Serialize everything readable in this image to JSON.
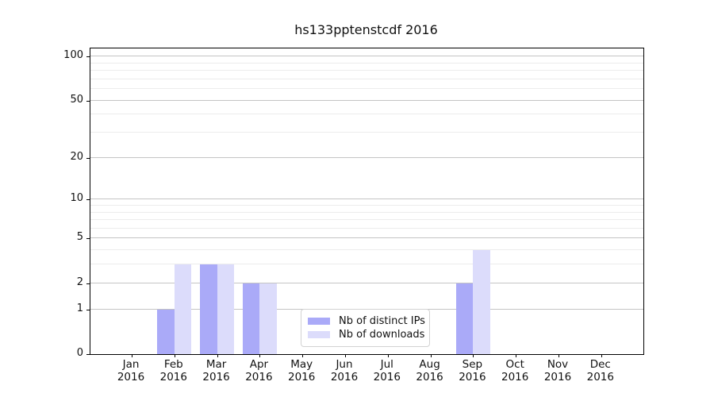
{
  "chart_data": {
    "type": "bar",
    "title": "hs133pptenstcdf 2016",
    "categories": [
      "Jan",
      "Feb",
      "Mar",
      "Apr",
      "May",
      "Jun",
      "Jul",
      "Aug",
      "Sep",
      "Oct",
      "Nov",
      "Dec"
    ],
    "year_label": "2016",
    "series": [
      {
        "name": "Nb of distinct IPs",
        "color": "#aaaaf8",
        "values": [
          0,
          1,
          3,
          2,
          0,
          0,
          0,
          0,
          2,
          0,
          0,
          0
        ]
      },
      {
        "name": "Nb of downloads",
        "color": "#dcdcfb",
        "values": [
          0,
          3,
          3,
          2,
          0,
          0,
          0,
          0,
          4,
          0,
          0,
          0
        ]
      }
    ],
    "xlabel": "",
    "ylabel": "",
    "scale": "log(1+x)",
    "ylim": [
      0,
      113
    ],
    "yticks": [
      0,
      1,
      2,
      5,
      10,
      20,
      50,
      100
    ],
    "minor_gridlines": [
      3,
      4,
      6,
      7,
      8,
      9,
      30,
      40,
      60,
      70,
      80,
      90
    ],
    "grid": true,
    "legend_position": "inside lower center-right"
  }
}
